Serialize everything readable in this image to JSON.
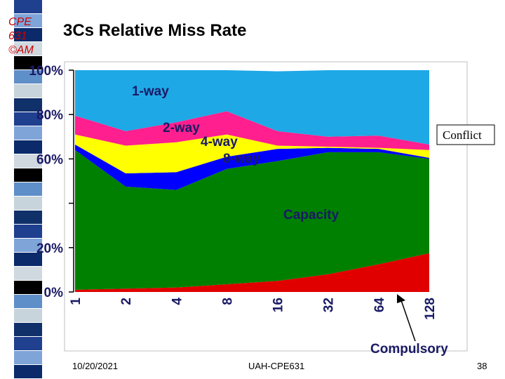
{
  "logo": {
    "line1": "CPE",
    "line2": "631",
    "line3": "©AM"
  },
  "slide": {
    "title": "3Cs Relative Miss Rate",
    "date": "10/20/2021",
    "course": "UAH-CPE631",
    "page": "38"
  },
  "colors": {
    "compulsory": "#e00000",
    "capacity": "#008000",
    "8-way": "#0000ff",
    "4-way": "#ffff00",
    "2-way": "#ff1f8e",
    "1-way": "#1ea8e6",
    "sidebar": [
      "#1f3f8f",
      "#7fa5d8",
      "#0a2a6a",
      "#d0d8e0",
      "#000000",
      "#5f8fc8",
      "#c8d4dc",
      "#10306a"
    ]
  },
  "chart_data": {
    "type": "area",
    "stacked": true,
    "x": [
      "1",
      "2",
      "4",
      "8",
      "16",
      "32",
      "64",
      "128"
    ],
    "ylim": [
      0,
      100
    ],
    "yticks": [
      "0%",
      "20%",
      "",
      "60%",
      "80%",
      "100%"
    ],
    "ytick_values": [
      0,
      20,
      40,
      60,
      80,
      100
    ],
    "xlabel": "",
    "ylabel": "",
    "series": [
      {
        "name": "Compulsory",
        "key": "compulsory",
        "values": [
          1,
          1.5,
          2,
          3.5,
          5,
          8,
          12.5,
          17.5
        ]
      },
      {
        "name": "Capacity",
        "key": "capacity",
        "values": [
          63,
          46,
          44,
          52,
          54,
          55,
          50.5,
          42.5
        ]
      },
      {
        "name": "8-way",
        "key": "8-way",
        "values": [
          2.5,
          6,
          8,
          5.5,
          5.5,
          2,
          1.5,
          0.5
        ]
      },
      {
        "name": "4-way",
        "key": "4-way",
        "values": [
          4.5,
          12.5,
          13.5,
          10,
          1.5,
          0.5,
          0.5,
          3.5
        ]
      },
      {
        "name": "2-way",
        "key": "2-way",
        "values": [
          8.5,
          6.5,
          9,
          10.5,
          6.5,
          4.5,
          5.5,
          2.5
        ]
      },
      {
        "name": "1-way",
        "key": "1-way",
        "values": [
          20.5,
          27.5,
          23.5,
          18.5,
          27,
          30,
          29.5,
          33.5
        ]
      }
    ],
    "labels": {
      "one_way": "1-way",
      "two_way": "2-way",
      "four_way": "4-way",
      "eight_way": "8-way",
      "capacity": "Capacity",
      "conflict": "Conflict",
      "compulsory": "Compulsory"
    }
  }
}
